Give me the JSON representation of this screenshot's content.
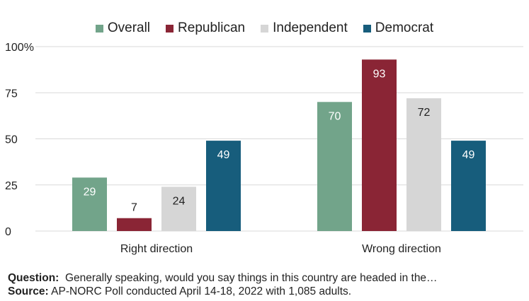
{
  "chart_data": {
    "type": "bar",
    "categories": [
      "Right direction",
      "Wrong direction"
    ],
    "series": [
      {
        "name": "Overall",
        "color": "#72a48a",
        "values": [
          29,
          70
        ]
      },
      {
        "name": "Republican",
        "color": "#8a2535",
        "values": [
          7,
          93
        ]
      },
      {
        "name": "Independent",
        "color": "#d6d6d6",
        "values": [
          24,
          72
        ]
      },
      {
        "name": "Democrat",
        "color": "#175d7c",
        "values": [
          49,
          49
        ]
      }
    ],
    "ylim": [
      0,
      100
    ],
    "yticks": [
      0,
      25,
      50,
      75,
      100
    ],
    "ytick_labels": [
      "0",
      "25",
      "50",
      "75",
      "100%"
    ],
    "grid": true,
    "legend_position": "top-center"
  },
  "footer": {
    "question_label": "Question:",
    "question_text": "Generally speaking, would you say things in this country are headed in the…",
    "source_label": "Source:",
    "source_text": "AP-NORC Poll conducted April 14-18, 2022 with 1,085 adults."
  }
}
